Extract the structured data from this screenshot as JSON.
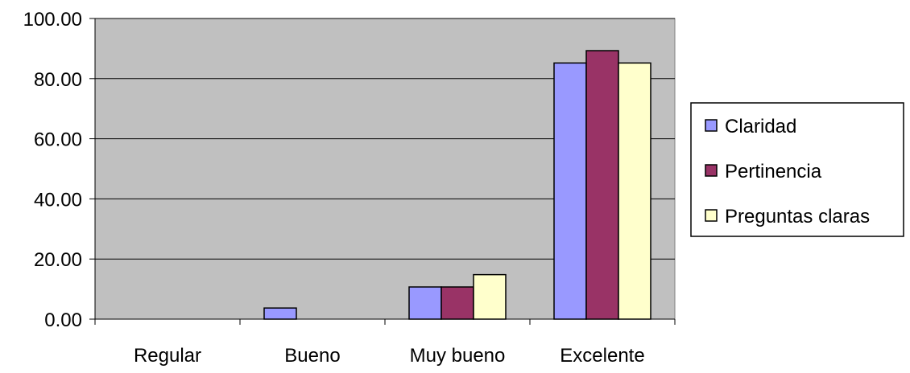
{
  "chart_data": {
    "type": "bar",
    "categories": [
      "Regular",
      "Bueno",
      "Muy bueno",
      "Excelente"
    ],
    "series": [
      {
        "name": "Claridad",
        "values": [
          0,
          3.7,
          10.7,
          85.2
        ],
        "color": "#9999ff"
      },
      {
        "name": "Pertinencia",
        "values": [
          0,
          0,
          10.7,
          89.3
        ],
        "color": "#993366"
      },
      {
        "name": "Preguntas claras",
        "values": [
          0,
          0,
          14.8,
          85.2
        ],
        "color": "#ffffcc"
      }
    ],
    "ylim": [
      0,
      100
    ],
    "yticks": [
      "0.00",
      "20.00",
      "40.00",
      "60.00",
      "80.00",
      "100.00"
    ],
    "ytick_values": [
      0,
      20,
      40,
      60,
      80,
      100
    ],
    "grid": true,
    "legend_position": "right",
    "plot_background": "#c0c0c0",
    "title": "",
    "xlabel": "",
    "ylabel": ""
  }
}
